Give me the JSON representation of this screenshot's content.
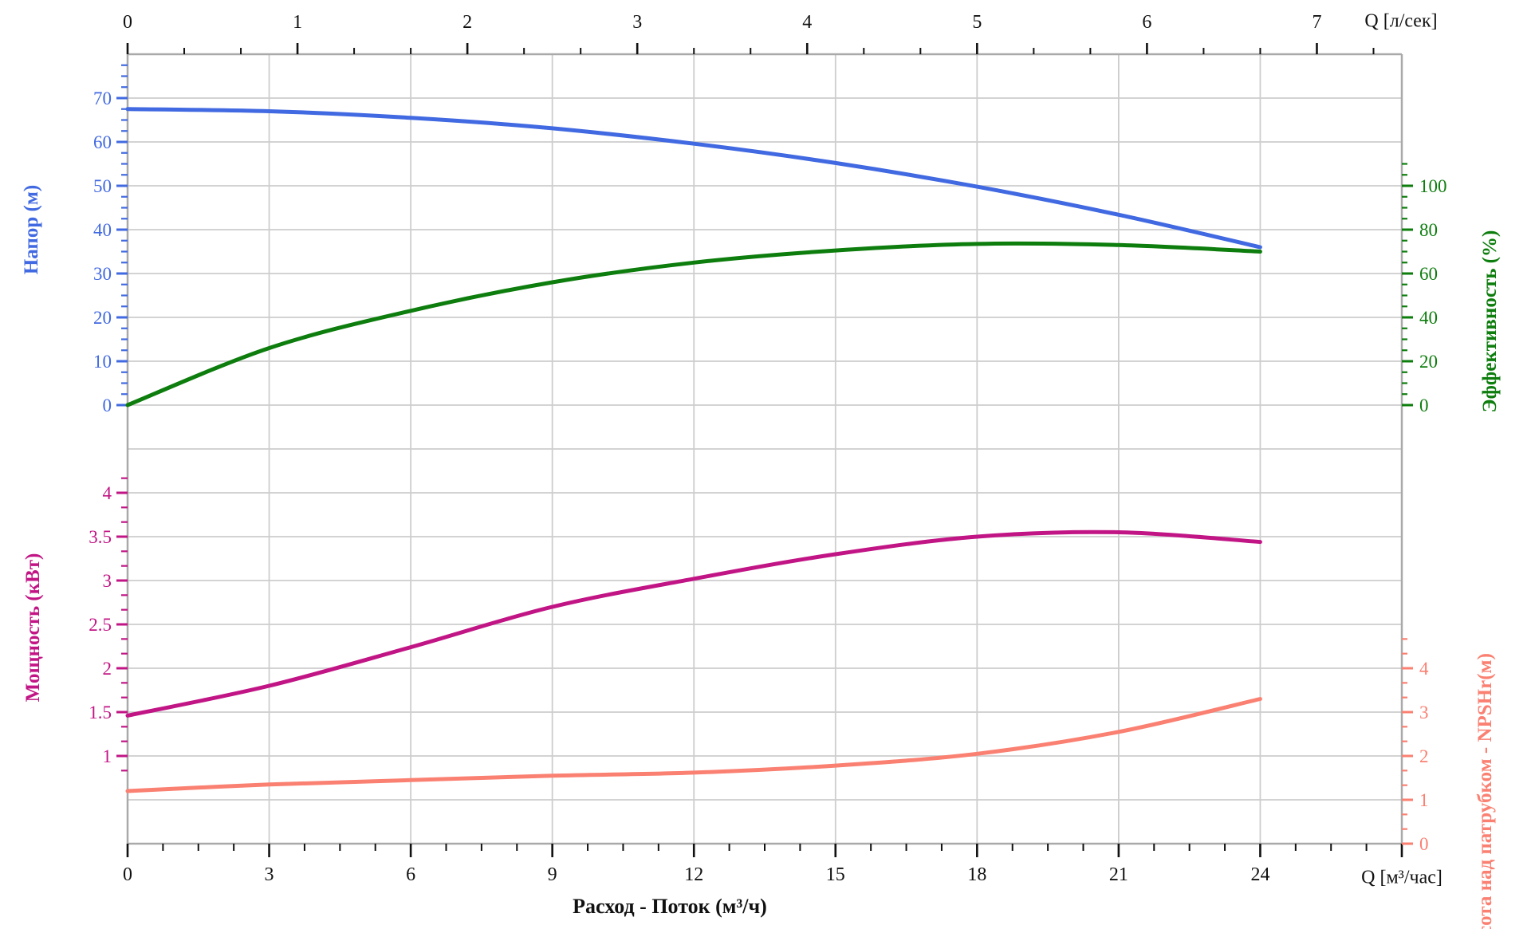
{
  "labels": {
    "top_axis_unit": "Q [л/сек]",
    "bottom_axis_unit": "Q [м³/час]",
    "x_title": "Расход - Поток (м³/ч)",
    "npshr_axis": "сота над патрубком - NPSHr(м)"
  },
  "colors": {
    "head": "#4169E1",
    "efficiency": "#0D7D0D",
    "power": "#C21585",
    "npshr": "#FA8072",
    "grid": "#CDCDCD",
    "spine": "#A9A9A9",
    "black": "#111111"
  },
  "chart_data": [
    {
      "type": "line",
      "title": "",
      "x": [
        0,
        3,
        6,
        9,
        12,
        15,
        18,
        21,
        24
      ],
      "x_units": "м³/час",
      "x_secondary_units": "л/сек",
      "x_secondary_ticks": [
        0,
        1,
        2,
        3,
        4,
        5,
        6,
        7
      ],
      "grid": true,
      "legend": false,
      "series": [
        {
          "name": "Напор (м)",
          "axis": "left",
          "color": "#4169E1",
          "values": [
            67.5,
            67.0,
            65.5,
            63.1,
            59.6,
            55.2,
            49.8,
            43.4,
            36.0
          ],
          "axis_ticks": [
            0,
            10,
            20,
            30,
            40,
            50,
            60,
            70
          ],
          "ylim": [
            -10,
            80
          ]
        },
        {
          "name": "Эффективность (%)",
          "axis": "right",
          "color": "#0D7D0D",
          "values": [
            0,
            26,
            43,
            56,
            65,
            70.5,
            73.5,
            73,
            70
          ],
          "axis_ticks": [
            0,
            20,
            40,
            60,
            80,
            100
          ],
          "ylim": [
            -20,
            160
          ]
        }
      ]
    },
    {
      "type": "line",
      "title": "",
      "x": [
        0,
        3,
        6,
        9,
        12,
        15,
        18,
        21,
        24
      ],
      "x_units": "м³/час",
      "xlabel": "Расход - Поток (м³/ч)",
      "grid": true,
      "legend": false,
      "series": [
        {
          "name": "Мощность (кВт)",
          "axis": "left",
          "color": "#C21585",
          "values": [
            1.46,
            1.8,
            2.24,
            2.7,
            3.02,
            3.3,
            3.5,
            3.55,
            3.44
          ],
          "axis_ticks": [
            1,
            1.5,
            2,
            2.5,
            3,
            3.5,
            4
          ],
          "ylim": [
            0.25,
            4.25
          ]
        },
        {
          "name": "NPSHr (м)",
          "axis": "right",
          "color": "#FA8072",
          "values": [
            1.2,
            1.35,
            1.45,
            1.55,
            1.62,
            1.78,
            2.05,
            2.55,
            3.3
          ],
          "axis_ticks": [
            0,
            1,
            2,
            3,
            4
          ],
          "ylim": [
            0,
            8
          ]
        }
      ]
    }
  ]
}
